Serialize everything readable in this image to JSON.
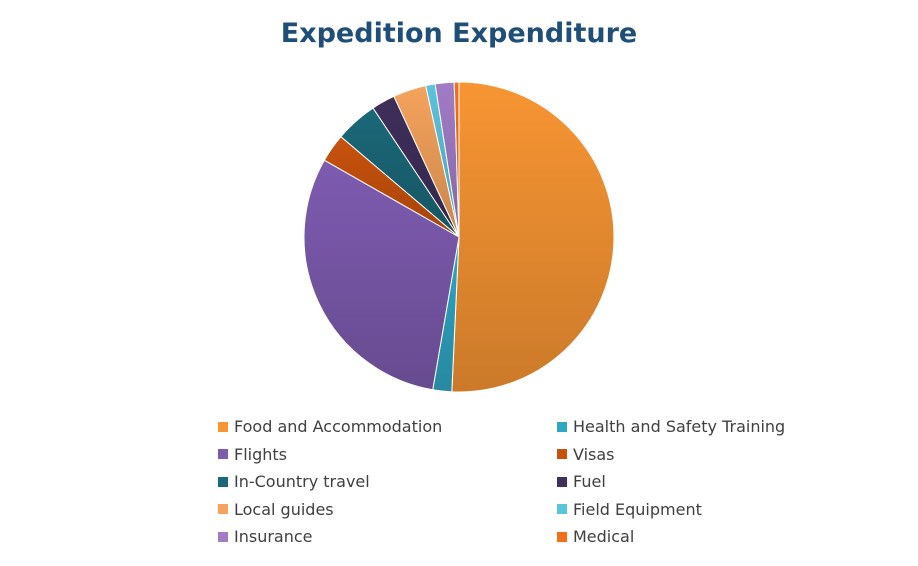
{
  "chart_data": {
    "type": "pie",
    "title": "Expedition Expenditure",
    "legend_position": "bottom",
    "slices": [
      {
        "label": "Food and Accommodation",
        "value": 51.5,
        "color": "#f79533"
      },
      {
        "label": "Health and Safety Training",
        "value": 2.0,
        "color": "#2fa6c4"
      },
      {
        "label": "Flights",
        "value": 31.0,
        "color": "#7d5bb0"
      },
      {
        "label": "Visas",
        "value": 3.0,
        "color": "#c9520d"
      },
      {
        "label": "In-Country travel",
        "value": 4.5,
        "color": "#1b6879"
      },
      {
        "label": "Fuel",
        "value": 2.5,
        "color": "#3e2f5b"
      },
      {
        "label": "Local guides",
        "value": 3.5,
        "color": "#f5a35c"
      },
      {
        "label": "Field Equipment",
        "value": 1.0,
        "color": "#5cc3dd"
      },
      {
        "label": "Insurance",
        "value": 2.0,
        "color": "#a27cc7"
      },
      {
        "label": "Medical",
        "value": 0.5,
        "color": "#f36f1c"
      }
    ]
  }
}
